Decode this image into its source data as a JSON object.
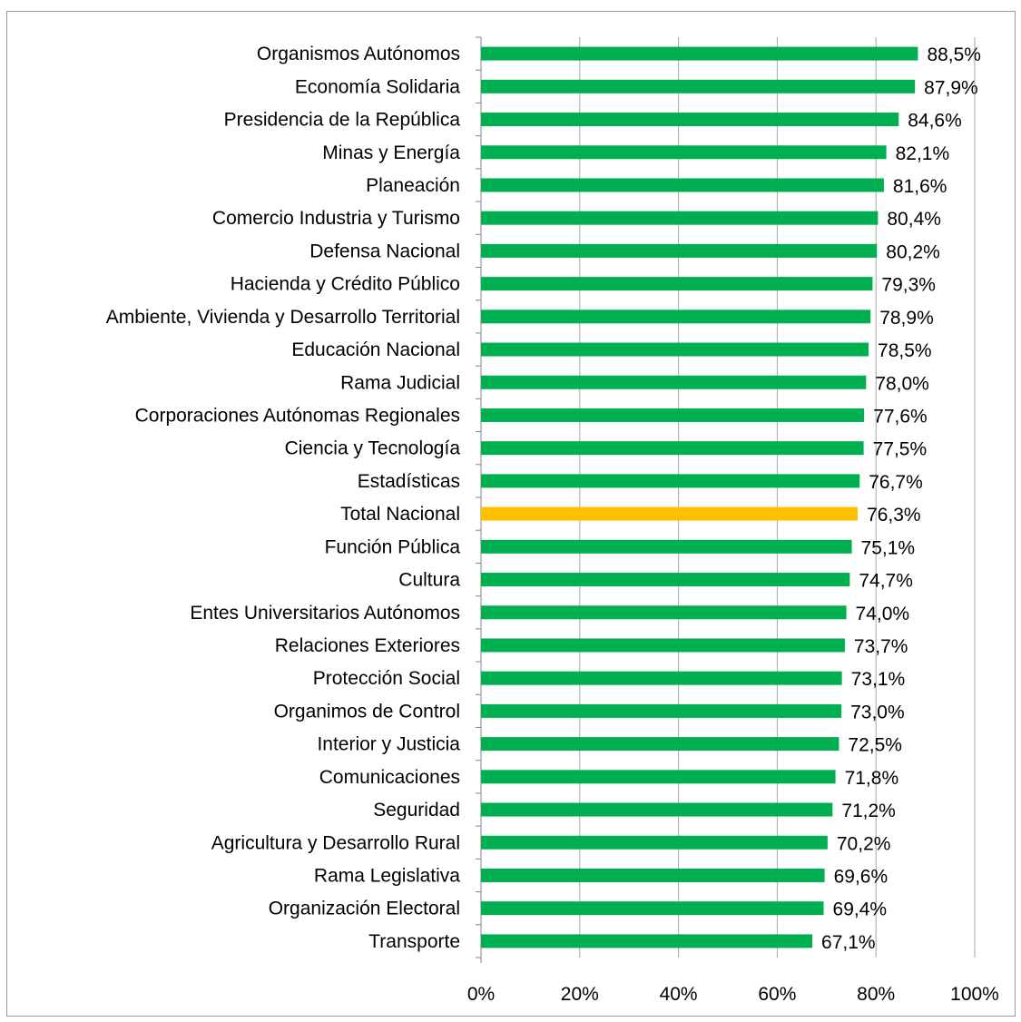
{
  "chart_data": {
    "type": "bar",
    "orientation": "horizontal",
    "categories": [
      "Organismos Autónomos",
      "Economía Solidaria",
      "Presidencia de la República",
      "Minas y Energía",
      "Planeación",
      "Comercio Industria y Turismo",
      "Defensa Nacional",
      "Hacienda y Crédito Público",
      "Ambiente, Vivienda y Desarrollo Territorial",
      "Educación Nacional",
      "Rama Judicial",
      "Corporaciones Autónomas Regionales",
      "Ciencia y Tecnología",
      "Estadísticas",
      "Total Nacional",
      "Función Pública",
      "Cultura",
      "Entes Universitarios Autónomos",
      "Relaciones Exteriores",
      "Protección Social",
      "Organimos de Control",
      "Interior y Justicia",
      "Comunicaciones",
      "Seguridad",
      "Agricultura y Desarrollo Rural",
      "Rama Legislativa",
      "Organización Electoral",
      "Transporte"
    ],
    "values": [
      88.5,
      87.9,
      84.6,
      82.1,
      81.6,
      80.4,
      80.2,
      79.3,
      78.9,
      78.5,
      78.0,
      77.6,
      77.5,
      76.7,
      76.3,
      75.1,
      74.7,
      74.0,
      73.7,
      73.1,
      73.0,
      72.5,
      71.8,
      71.2,
      70.2,
      69.6,
      69.4,
      67.1
    ],
    "data_labels": [
      "88,5%",
      "87,9%",
      "84,6%",
      "82,1%",
      "81,6%",
      "80,4%",
      "80,2%",
      "79,3%",
      "78,9%",
      "78,5%",
      "78,0%",
      "77,6%",
      "77,5%",
      "76,7%",
      "76,3%",
      "75,1%",
      "74,7%",
      "74,0%",
      "73,7%",
      "73,1%",
      "73,0%",
      "72,5%",
      "71,8%",
      "71,2%",
      "70,2%",
      "69,6%",
      "69,4%",
      "67,1%"
    ],
    "highlight_category": "Total Nacional",
    "x_ticks": [
      "0%",
      "20%",
      "40%",
      "60%",
      "80%",
      "100%"
    ],
    "xlim": [
      0,
      100
    ],
    "grid": true,
    "colors": {
      "bar": "#00b050",
      "highlight": "#ffc000",
      "grid": "#a6a6a6",
      "axis": "#868686"
    }
  }
}
